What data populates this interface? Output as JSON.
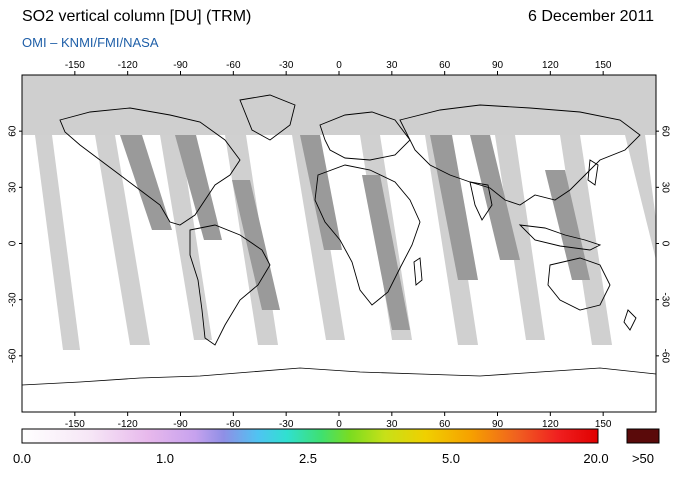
{
  "header": {
    "title": "SO2 vertical column [DU] (TRM)",
    "date": "6 December 2011",
    "source": "OMI  –  KNMI/FMI/NASA"
  },
  "map": {
    "lon_ticks": [
      "-150",
      "-120",
      "-90",
      "-60",
      "-30",
      "0",
      "30",
      "60",
      "90",
      "120",
      "150"
    ],
    "lat_ticks": [
      "60",
      "30",
      "0",
      "-30",
      "-60"
    ],
    "colors": {
      "no_data": "#cccccc",
      "land_swath_gap": "#999999",
      "ocean_swath_gap": "#d0d0d0",
      "coast": "#000000"
    }
  },
  "colorbar": {
    "labels": [
      "0.0",
      "1.0",
      "2.5",
      "5.0",
      "20.0"
    ],
    "over_label": ">50",
    "over_color": "#5a0a0a"
  }
}
